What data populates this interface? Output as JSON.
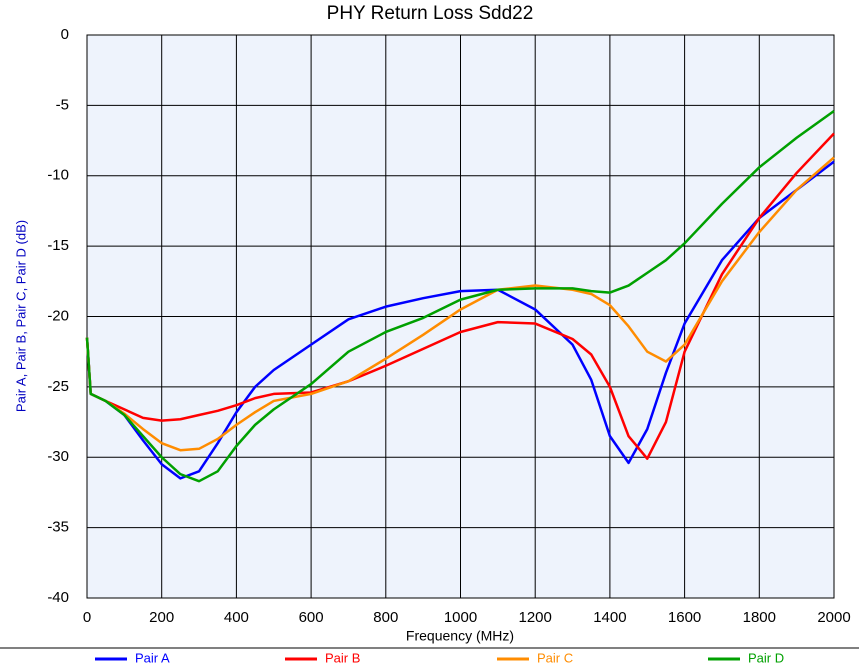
{
  "chart_data": {
    "type": "line",
    "title": "PHY Return Loss Sdd22",
    "x_label": "Frequency (MHz)",
    "y_label": "Pair A, Pair B, Pair C, Pair D (dB)",
    "x": [
      0,
      10,
      50,
      100,
      150,
      200,
      250,
      300,
      350,
      400,
      450,
      500,
      600,
      700,
      800,
      900,
      1000,
      1100,
      1200,
      1300,
      1350,
      1400,
      1450,
      1500,
      1550,
      1600,
      1700,
      1800,
      1900,
      2000
    ],
    "series": [
      {
        "name": "Pair A",
        "color": "#0000ff",
        "values": [
          -21.5,
          -25.5,
          -26,
          -27,
          -28.8,
          -30.5,
          -31.5,
          -31,
          -29,
          -26.8,
          -25,
          -23.8,
          -22,
          -20.2,
          -19.3,
          -18.7,
          -18.2,
          -18.1,
          -19.5,
          -22,
          -24.5,
          -28.5,
          -30.4,
          -28,
          -24,
          -20.5,
          -16,
          -13,
          -11,
          -9
        ]
      },
      {
        "name": "Pair B",
        "color": "#ff0000",
        "values": [
          -21.5,
          -25.5,
          -26,
          -26.6,
          -27.2,
          -27.4,
          -27.3,
          -27,
          -26.7,
          -26.3,
          -25.8,
          -25.5,
          -25.4,
          -24.6,
          -23.5,
          -22.3,
          -21.1,
          -20.4,
          -20.5,
          -21.6,
          -22.7,
          -25,
          -28.5,
          -30.1,
          -27.5,
          -22.5,
          -17,
          -13,
          -9.8,
          -7
        ]
      },
      {
        "name": "Pair C",
        "color": "#ff8c00",
        "values": [
          -21.5,
          -25.5,
          -26,
          -26.9,
          -28,
          -29,
          -29.5,
          -29.4,
          -28.7,
          -27.7,
          -26.8,
          -26,
          -25.5,
          -24.6,
          -23,
          -21.3,
          -19.5,
          -18.1,
          -17.8,
          -18.1,
          -18.4,
          -19.2,
          -20.7,
          -22.5,
          -23.2,
          -22,
          -17.5,
          -14,
          -11,
          -8.7
        ]
      },
      {
        "name": "Pair D",
        "color": "#00a000",
        "values": [
          -21.5,
          -25.5,
          -26,
          -27,
          -28.5,
          -30,
          -31.2,
          -31.7,
          -31,
          -29.2,
          -27.7,
          -26.6,
          -24.8,
          -22.5,
          -21.1,
          -20.1,
          -18.8,
          -18.1,
          -18,
          -18,
          -18.2,
          -18.3,
          -17.8,
          -16.9,
          -16,
          -14.8,
          -12,
          -9.4,
          -7.3,
          -5.4
        ]
      }
    ],
    "xlim": [
      0,
      2000
    ],
    "xticks": [
      0,
      200,
      400,
      600,
      800,
      1000,
      1200,
      1400,
      1600,
      1800,
      2000
    ],
    "ylim": [
      -40,
      0
    ],
    "yticks": [
      0,
      -5,
      -10,
      -15,
      -20,
      -25,
      -30,
      -35,
      -40
    ],
    "grid": true,
    "legend": "bottom"
  }
}
